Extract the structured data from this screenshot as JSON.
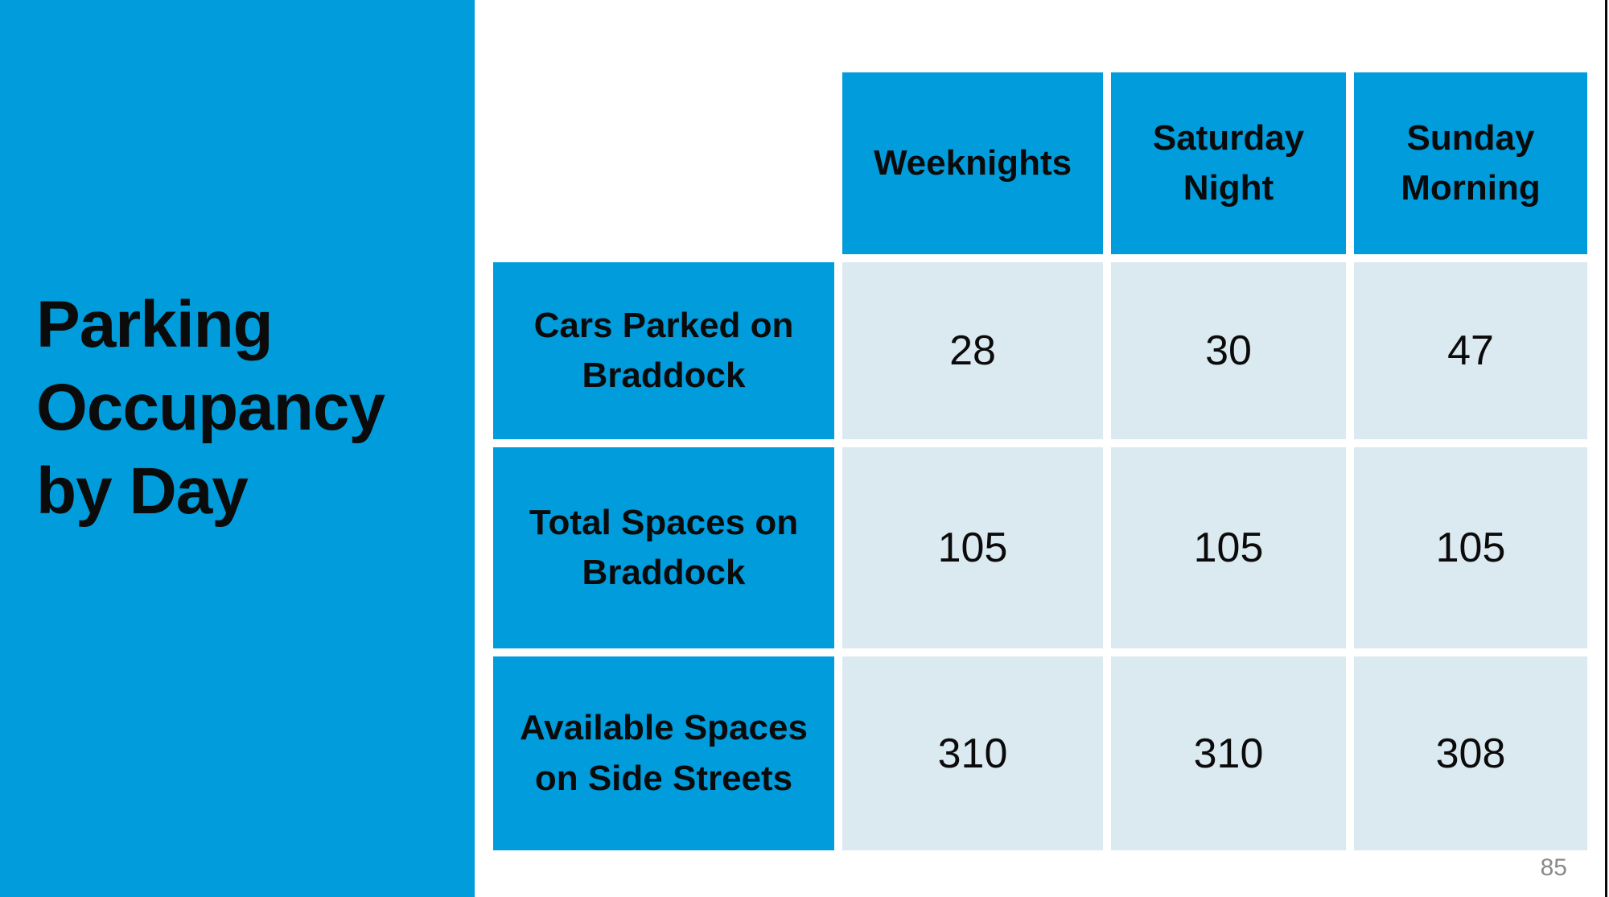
{
  "title": {
    "text": "Parking Occupancy by Day"
  },
  "page": {
    "page_number": "85"
  },
  "colors": {
    "accent_blue": "#009CDB",
    "cell_light_blue": "#DBE9F1",
    "text_black": "#0B0B0B",
    "page_number_gray": "#8A8A8A",
    "edge_line_black": "#0B0B0B",
    "background_white": "#FFFFFF"
  },
  "table": {
    "column_headers": [
      "Weeknights",
      "Saturday Night",
      "Sunday Morning"
    ],
    "rows": [
      {
        "label": "Cars Parked on Braddock",
        "values": [
          "28",
          "30",
          "47"
        ]
      },
      {
        "label": "Total Spaces on Braddock",
        "values": [
          "105",
          "105",
          "105"
        ]
      },
      {
        "label": "Available Spaces on Side Streets",
        "values": [
          "310",
          "310",
          "308"
        ]
      }
    ]
  },
  "chart_data": {
    "type": "table",
    "title": "Parking Occupancy by Day",
    "categories": [
      "Weeknights",
      "Saturday Night",
      "Sunday Morning"
    ],
    "series": [
      {
        "name": "Cars Parked on Braddock",
        "values": [
          28,
          30,
          47
        ]
      },
      {
        "name": "Total Spaces on Braddock",
        "values": [
          105,
          105,
          105
        ]
      },
      {
        "name": "Available Spaces on Side Streets",
        "values": [
          310,
          310,
          308
        ]
      }
    ],
    "legend_position": "none",
    "grid": false
  }
}
